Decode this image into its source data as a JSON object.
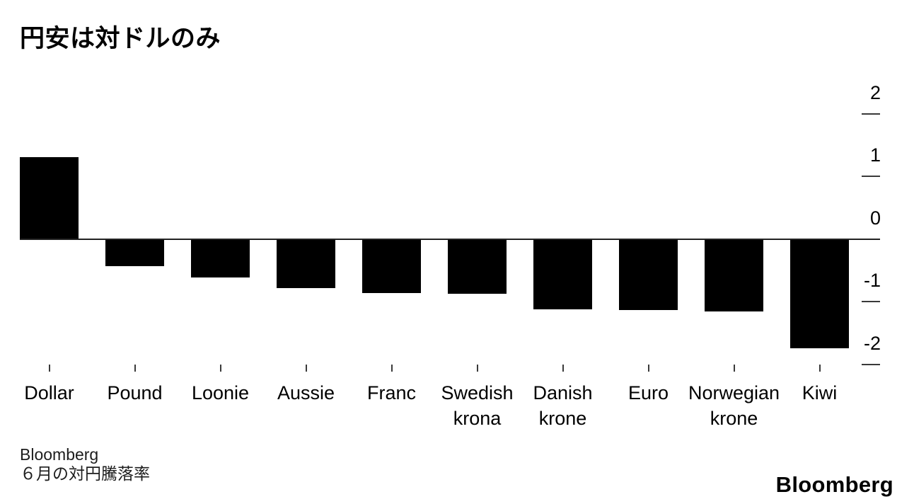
{
  "header": {
    "title": "円安は対ドルのみ"
  },
  "footer": {
    "source": "Bloomberg",
    "note": "６月の対円騰落率",
    "logo": "Bloomberg"
  },
  "colors": {
    "bar": "#000000",
    "axis": "#222222",
    "tick": "#3a3a3a",
    "text": "#000000",
    "background": "#ffffff"
  },
  "chart_data": {
    "type": "bar",
    "title": "円安は対ドルのみ",
    "categories": [
      "Dollar",
      "Pound",
      "Loonie",
      "Aussie",
      "Franc",
      "Swedish krona",
      "Danish krone",
      "Euro",
      "Norwegian krone",
      "Kiwi"
    ],
    "values": [
      1.3,
      -0.44,
      -0.62,
      -0.79,
      -0.86,
      -0.88,
      -1.12,
      -1.14,
      -1.16,
      -1.75
    ],
    "xlabel": "",
    "ylabel": "",
    "yticks": [
      2,
      1,
      0,
      -1,
      -2
    ],
    "ylim": [
      -2.3,
      2.45
    ],
    "ytick_side": "right",
    "grid": false,
    "legend": "none",
    "note": "６月の対円騰落率",
    "source": "Bloomberg"
  }
}
